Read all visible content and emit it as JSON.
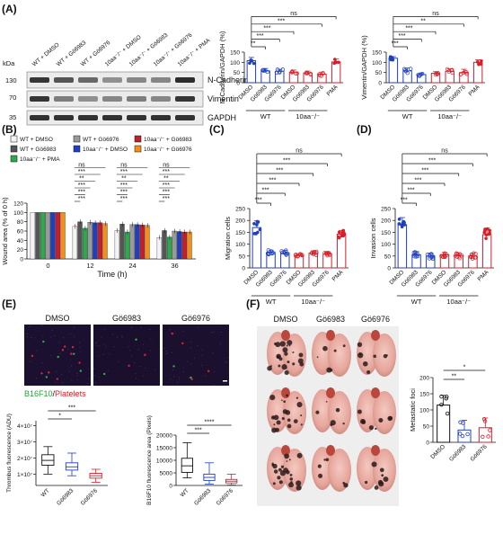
{
  "panel_labels": {
    "a": "(A)",
    "b": "(B)",
    "c": "(C)",
    "d": "(D)",
    "e": "(E)",
    "f": "(F)"
  },
  "blot": {
    "lanes": [
      "WT + DMSO",
      "WT + Gö6983",
      "WT + Gö6976",
      "10aa⁻/⁻ + DMSO",
      "10aa⁻/⁻ + Gö6983",
      "10aa⁻/⁻ + Gö6976",
      "10aa⁻/⁻ + PMA"
    ],
    "kda_label": "kDa",
    "kda": [
      "130",
      "70",
      "35"
    ],
    "bands": [
      "N-Cadherin",
      "Vimentin",
      "GAPDH"
    ]
  },
  "groups": {
    "wt": "WT",
    "ko": "10aa⁻/⁻"
  },
  "xcats": [
    "DMSO",
    "Gö6983",
    "Gö6976",
    "DMSO",
    "Gö6983",
    "Gö6976",
    "PMA"
  ],
  "sig_labels": {
    "ns": "ns",
    "s1": "*",
    "s2": "**",
    "s3": "***",
    "s4": "****"
  },
  "colors": {
    "wt": "#1f3fbf",
    "ko": "#d61f2b"
  },
  "chart_data": [
    {
      "id": "A1",
      "type": "bar",
      "ylabel": "N-Cadherin/GAPDH (%)",
      "ylim": [
        0,
        150
      ],
      "yticks": [
        0,
        50,
        100,
        150
      ],
      "values": [
        108,
        58,
        56,
        52,
        48,
        42,
        102
      ],
      "errors": [
        16,
        12,
        10,
        10,
        9,
        10,
        14
      ],
      "sig": [
        "**",
        "***",
        "***",
        "***",
        "ns"
      ]
    },
    {
      "id": "A2",
      "type": "bar",
      "ylabel": "Vimentin/GAPDH (%)",
      "ylim": [
        0,
        150
      ],
      "yticks": [
        0,
        50,
        100,
        150
      ],
      "values": [
        120,
        58,
        40,
        46,
        56,
        50,
        100
      ],
      "errors": [
        8,
        14,
        8,
        8,
        12,
        16,
        12
      ],
      "sig": [
        "***",
        "***",
        "***",
        "**",
        "ns"
      ]
    },
    {
      "id": "B",
      "type": "bar",
      "ylabel": "Wound area (% of 0 h)",
      "xlabel": "Time (h)",
      "ylim": [
        0,
        120
      ],
      "yticks": [
        0,
        20,
        40,
        60,
        80,
        100,
        120
      ],
      "categories": [
        "0",
        "12",
        "24",
        "36"
      ],
      "series": [
        {
          "name": "WT + DMSO",
          "values": [
            100,
            70,
            61,
            46
          ]
        },
        {
          "name": "WT + Gö6983",
          "values": [
            100,
            80,
            75,
            61
          ]
        },
        {
          "name": "10aa⁻/⁻ + PMA",
          "values": [
            100,
            66,
            58,
            47
          ]
        },
        {
          "name": "WT + Gö6976",
          "values": [
            100,
            79,
            74,
            60
          ]
        },
        {
          "name": "10aa⁻/⁻ + DMSO",
          "values": [
            100,
            78,
            74,
            59
          ]
        },
        {
          "name": "10aa⁻/⁻ + Gö6983",
          "values": [
            100,
            78,
            73,
            58
          ]
        },
        {
          "name": "10aa⁻/⁻ + Gö6976",
          "values": [
            100,
            76,
            72,
            58
          ]
        }
      ],
      "sig": [
        "***",
        "***",
        "***",
        "**",
        "***",
        "ns"
      ]
    },
    {
      "id": "C",
      "type": "bar",
      "ylabel": "Migration cells",
      "ylim": [
        0,
        250
      ],
      "yticks": [
        0,
        50,
        100,
        150,
        200,
        250
      ],
      "values": [
        170,
        65,
        62,
        52,
        62,
        58,
        142
      ],
      "errors": [
        28,
        10,
        12,
        8,
        10,
        8,
        16
      ],
      "sig": [
        "***",
        "***",
        "***",
        "***",
        "***",
        "ns"
      ]
    },
    {
      "id": "D",
      "type": "bar",
      "ylabel": "Invasion cells",
      "ylim": [
        0,
        250
      ],
      "yticks": [
        0,
        50,
        100,
        150,
        200,
        250
      ],
      "values": [
        182,
        55,
        50,
        55,
        52,
        50,
        140
      ],
      "errors": [
        30,
        14,
        12,
        10,
        12,
        12,
        28
      ],
      "sig": [
        "***",
        "***",
        "***",
        "***",
        "***",
        "ns"
      ]
    },
    {
      "id": "E1",
      "type": "box",
      "ylabel": "Thrombus fluorescence (ADU)",
      "categories": [
        "WT",
        "Gö6983",
        "Gö6976"
      ],
      "yticks": [
        "1×10⁷",
        "2×10⁷",
        "3×10⁷",
        "4×10⁷"
      ],
      "boxes": [
        [
          1.0,
          1.55,
          1.85,
          2.2,
          2.7
        ],
        [
          0.9,
          1.25,
          1.45,
          1.7,
          2.3
        ],
        [
          0.5,
          0.75,
          0.9,
          1.05,
          1.3
        ]
      ],
      "sig": [
        "*",
        "***"
      ]
    },
    {
      "id": "E2",
      "type": "box",
      "ylabel": "B16F10 fluorescence area (Pixels)",
      "categories": [
        "WT",
        "Gö6983",
        "Gö6976"
      ],
      "yticks": [
        0,
        5000,
        10000,
        15000,
        20000
      ],
      "ylim": [
        0,
        20000
      ],
      "boxes": [
        [
          3000,
          5200,
          7800,
          10800,
          17000
        ],
        [
          500,
          2000,
          3200,
          4500,
          9000
        ],
        [
          200,
          1000,
          1700,
          2400,
          4500
        ]
      ],
      "sig": [
        "***",
        "****"
      ]
    },
    {
      "id": "F",
      "type": "bar",
      "ylabel": "Metastatic foci",
      "categories": [
        "DMSO",
        "Gö6983",
        "Gö6976"
      ],
      "ylim": [
        0,
        200
      ],
      "yticks": [
        0,
        50,
        100,
        150,
        200
      ],
      "values": [
        115,
        38,
        45
      ],
      "errors": [
        30,
        30,
        30
      ],
      "sig": [
        "**",
        "*"
      ]
    }
  ],
  "micro": {
    "titles": [
      "DMSO",
      "Gö6983",
      "Gö6976"
    ],
    "legend_green": "B16F10",
    "legend_sep": "/",
    "legend_red": "Platelets"
  },
  "lungs": {
    "titles": [
      "DMSO",
      "Gö6983",
      "Gö6976"
    ]
  }
}
